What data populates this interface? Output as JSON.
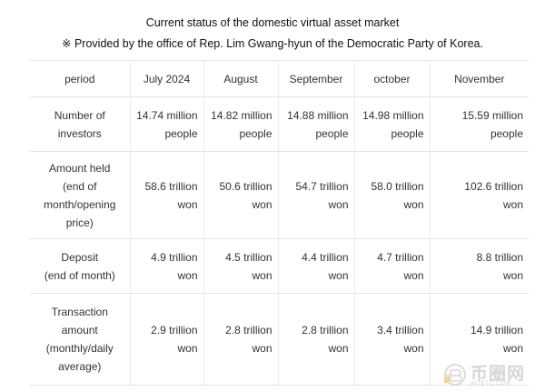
{
  "title": "Current status of the domestic virtual asset market",
  "subtitle": "※ Provided by the office of Rep. Lim Gwang-hyun of the Democratic Party of Korea.",
  "table": {
    "header": [
      "period",
      "July 2024",
      "August",
      "September",
      "october",
      "November"
    ],
    "rows": [
      {
        "label": [
          "Number of",
          "investors"
        ],
        "cells": [
          [
            "14.74 million",
            "people"
          ],
          [
            "14.82 million",
            "people"
          ],
          [
            "14.88 million",
            "people"
          ],
          [
            "14.98 million",
            "people"
          ],
          [
            "15.59 million",
            "people"
          ]
        ]
      },
      {
        "label": [
          "Amount held",
          "(end of",
          "month/opening",
          "price)"
        ],
        "cells": [
          [
            "58.6 trillion",
            "won"
          ],
          [
            "50.6 trillion",
            "won"
          ],
          [
            "54.7 trillion",
            "won"
          ],
          [
            "58.0 trillion",
            "won"
          ],
          [
            "102.6 trillion",
            "won"
          ]
        ]
      },
      {
        "label": [
          "Deposit",
          "(end of month)"
        ],
        "cells": [
          [
            "4.9 trillion",
            "won"
          ],
          [
            "4.5 trillion",
            "won"
          ],
          [
            "4.4 trillion",
            "won"
          ],
          [
            "4.7 trillion",
            "won"
          ],
          [
            "8.8 trillion",
            "won"
          ]
        ]
      },
      {
        "label": [
          "Transaction",
          "amount",
          "(monthly/daily",
          "average)"
        ],
        "cells": [
          [
            "2.9 trillion",
            "won"
          ],
          [
            "2.8 trillion",
            "won"
          ],
          [
            "2.8 trillion",
            "won"
          ],
          [
            "3.4 trillion",
            "won"
          ],
          [
            "14.9 trillion",
            "won"
          ]
        ]
      }
    ]
  },
  "watermark": {
    "brand": "币圈网",
    "site": "ALIBTC.COM"
  },
  "colors": {
    "text": "#333333",
    "grid": "#e3e3e3",
    "watermark": "#c9c9c9",
    "watermark_accent": "#e8c879"
  }
}
